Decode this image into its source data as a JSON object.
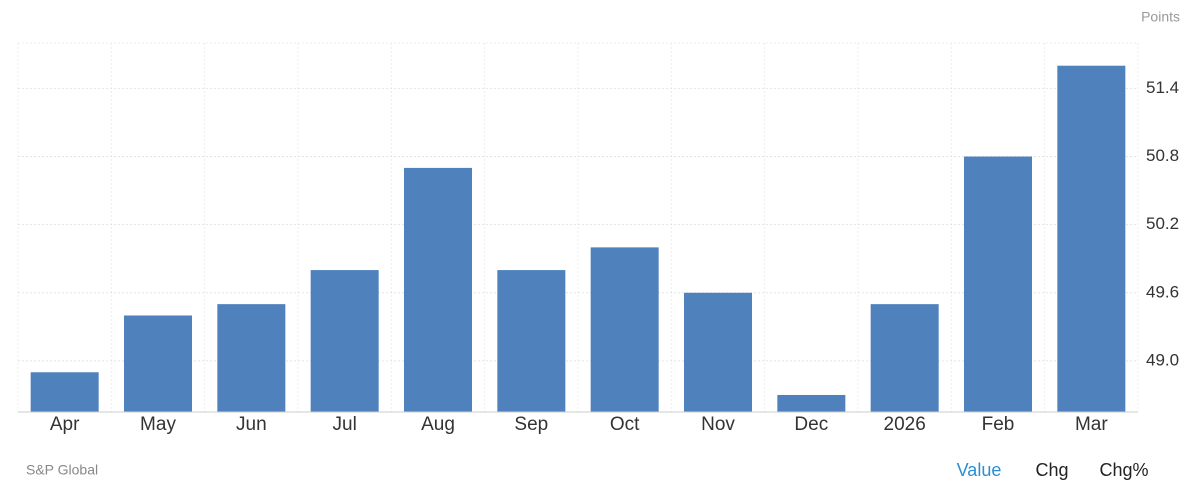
{
  "chart_data": {
    "type": "bar",
    "unit_label": "Points",
    "source": "S&P Global",
    "categories": [
      "Apr",
      "May",
      "Jun",
      "Jul",
      "Aug",
      "Sep",
      "Oct",
      "Nov",
      "Dec",
      "2026",
      "Feb",
      "Mar"
    ],
    "values": [
      48.9,
      49.4,
      49.5,
      49.8,
      50.7,
      49.8,
      50.0,
      49.6,
      48.7,
      49.5,
      50.8,
      51.6
    ],
    "color": "#4f81bd",
    "ylim": [
      48.55,
      51.8
    ],
    "yticks": [
      {
        "value": 49,
        "label": "49.0"
      },
      49.6,
      50.2,
      50.8,
      51.4
    ],
    "grid": true
  },
  "controls": [
    "Value",
    "Chg",
    "Chg%"
  ]
}
